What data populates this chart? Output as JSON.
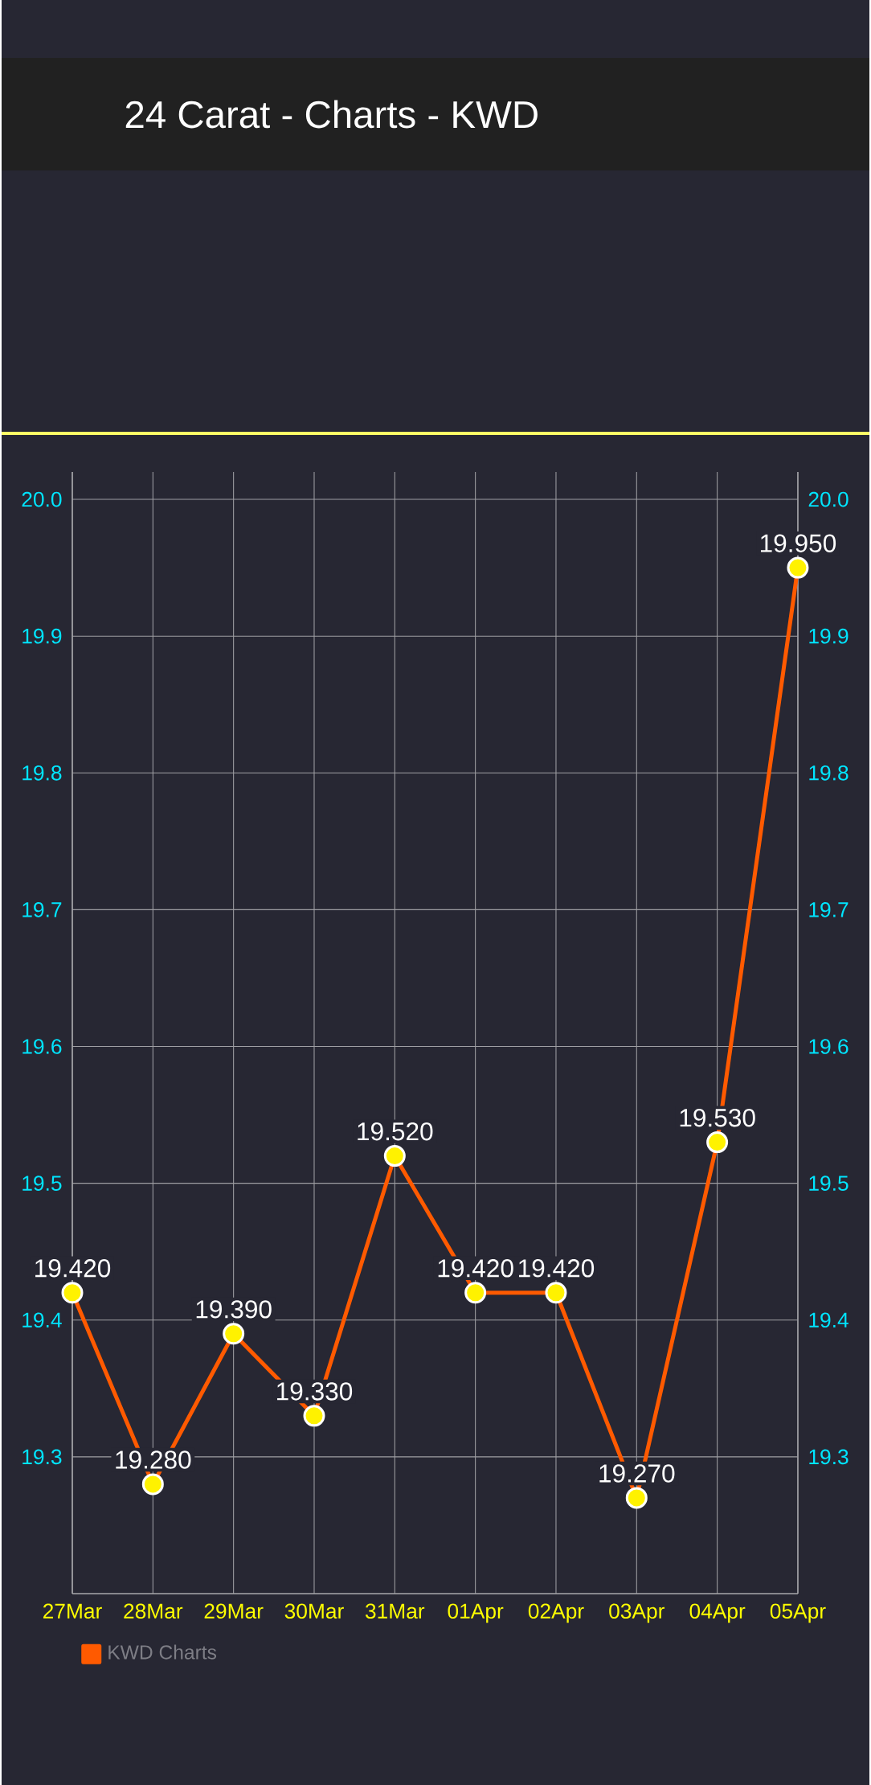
{
  "chart_data": {
    "type": "line",
    "title": "24 Carat - Charts - KWD",
    "categories": [
      "27Mar",
      "28Mar",
      "29Mar",
      "30Mar",
      "31Mar",
      "01Apr",
      "02Apr",
      "03Apr",
      "04Apr",
      "05Apr"
    ],
    "series": [
      {
        "name": "KWD Charts",
        "color": "#ff5a00",
        "values": [
          19.42,
          19.28,
          19.39,
          19.33,
          19.52,
          19.42,
          19.42,
          19.27,
          19.53,
          19.95
        ],
        "value_labels": [
          "19.420",
          "19.280",
          "19.390",
          "19.330",
          "19.520",
          "19.420",
          "19.420",
          "19.270",
          "19.530",
          "19.950"
        ]
      }
    ],
    "ylim": [
      19.2,
      20.02
    ],
    "yticks": [
      19.3,
      19.4,
      19.5,
      19.6,
      19.7,
      19.8,
      19.9,
      {
        "value": 20,
        "label": "20.0"
      }
    ],
    "y2lim": [
      19.2,
      20.02
    ],
    "y2ticks": [
      19.3,
      19.4,
      19.5,
      19.6,
      19.7,
      19.8,
      19.9,
      {
        "value": 20,
        "label": "20.0"
      }
    ],
    "grid": true,
    "legend": "bottom left",
    "marker": "circle",
    "line_style": "solid"
  }
}
